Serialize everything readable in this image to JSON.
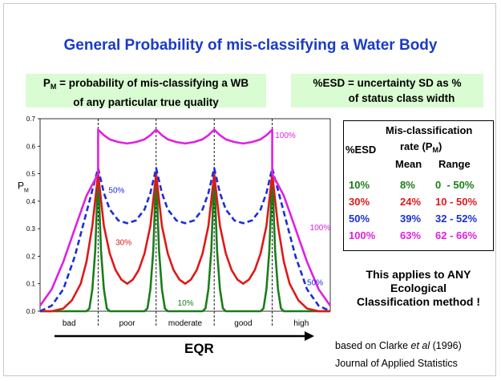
{
  "title": "General Probability of mis-classifying a Water Body",
  "note_left": {
    "line1_prefix": "P",
    "line1_sub": "M",
    "line1_rest": " = probability of mis-classifying a WB",
    "line2": "of any particular true quality"
  },
  "note_right": {
    "line1": "%ESD = uncertainty SD as %",
    "line2": "of status class width"
  },
  "table": {
    "header_line1": "Mis-classification",
    "header_line2_prefix": "rate (P",
    "header_line2_sub": "M",
    "header_line2_suffix": ")",
    "col_esd": "%ESD",
    "col_mean": "Mean",
    "col_range": "Range",
    "rows": [
      {
        "esd": "10%",
        "mean": "8%",
        "range": "0  - 50%",
        "color": "#1b7d1b"
      },
      {
        "esd": "30%",
        "mean": "24%",
        "range": "10 - 50%",
        "color": "#e01818"
      },
      {
        "esd": "50%",
        "mean": "39%",
        "range": "32 - 52%",
        "color": "#1a2fd6"
      },
      {
        "esd": "100%",
        "mean": "63%",
        "range": "62 - 66%",
        "color": "#e020e0"
      }
    ]
  },
  "applies_text": [
    "This applies to ANY",
    "Ecological",
    "Classification method !"
  ],
  "source": {
    "line1_prefix": "based on Clarke ",
    "line1_italic": "et al",
    "line1_suffix": " (1996)",
    "line2": "Journal of Applied Statistics"
  },
  "eqr_label": "EQR",
  "chart_data": {
    "type": "line",
    "ylabel": "P",
    "ylabel_sub": "M",
    "ylim": [
      0,
      0.7
    ],
    "yticks": [
      "0.0",
      "0.1",
      "0.2",
      "0.3",
      "0.4",
      "0.5",
      "0.6",
      "0.7"
    ],
    "xlim": [
      0,
      5
    ],
    "class_boundaries": [
      1,
      2,
      3,
      4
    ],
    "class_labels": [
      "bad",
      "poor",
      "moderate",
      "good",
      "high"
    ],
    "grid": false,
    "series": [
      {
        "name": "10%",
        "color": "#1b7d1b",
        "dash": false,
        "x": [
          0,
          0.8,
          0.85,
          0.9,
          0.95,
          1.0,
          1.05,
          1.1,
          1.15,
          1.2,
          1.5,
          1.8,
          1.85,
          1.9,
          1.95,
          2.0,
          2.05,
          2.1,
          2.15,
          2.2,
          2.5,
          2.8,
          2.85,
          2.9,
          2.95,
          3.0,
          3.05,
          3.1,
          3.15,
          3.2,
          3.5,
          3.8,
          3.85,
          3.9,
          3.95,
          4.0,
          4.05,
          4.1,
          4.15,
          4.2,
          5
        ],
        "y": [
          0,
          0.0,
          0.01,
          0.08,
          0.22,
          0.5,
          0.22,
          0.08,
          0.01,
          0.0,
          0.0,
          0.0,
          0.01,
          0.08,
          0.22,
          0.5,
          0.22,
          0.08,
          0.01,
          0.0,
          0.0,
          0.0,
          0.01,
          0.08,
          0.22,
          0.5,
          0.22,
          0.08,
          0.01,
          0.0,
          0.0,
          0.0,
          0.01,
          0.08,
          0.22,
          0.5,
          0.22,
          0.08,
          0.01,
          0.0,
          0
        ]
      },
      {
        "name": "30%",
        "color": "#e01818",
        "dash": false,
        "x": [
          0,
          0.2,
          0.4,
          0.55,
          0.7,
          0.8,
          0.9,
          1.0,
          1.1,
          1.2,
          1.3,
          1.4,
          1.5,
          1.6,
          1.7,
          1.8,
          1.9,
          2.0,
          2.1,
          2.2,
          2.3,
          2.4,
          2.5,
          2.6,
          2.7,
          2.8,
          2.9,
          3.0,
          3.1,
          3.2,
          3.3,
          3.4,
          3.5,
          3.6,
          3.7,
          3.8,
          3.9,
          4.0,
          4.1,
          4.2,
          4.3,
          4.45,
          4.6,
          4.8,
          5.0
        ],
        "y": [
          0.0,
          0.0,
          0.01,
          0.04,
          0.1,
          0.18,
          0.31,
          0.5,
          0.31,
          0.21,
          0.15,
          0.115,
          0.1,
          0.115,
          0.15,
          0.21,
          0.31,
          0.5,
          0.31,
          0.21,
          0.15,
          0.115,
          0.1,
          0.115,
          0.15,
          0.21,
          0.31,
          0.5,
          0.31,
          0.21,
          0.15,
          0.115,
          0.1,
          0.115,
          0.15,
          0.21,
          0.31,
          0.5,
          0.31,
          0.18,
          0.1,
          0.04,
          0.01,
          0.0,
          0.0
        ]
      },
      {
        "name": "50%",
        "color": "#1a2fd6",
        "dash": true,
        "x": [
          0,
          0.2,
          0.4,
          0.6,
          0.8,
          0.9,
          1.0,
          1.1,
          1.2,
          1.35,
          1.5,
          1.65,
          1.8,
          1.9,
          2.0,
          2.1,
          2.2,
          2.35,
          2.5,
          2.65,
          2.8,
          2.9,
          3.0,
          3.1,
          3.2,
          3.35,
          3.5,
          3.65,
          3.8,
          3.9,
          4.0,
          4.1,
          4.2,
          4.4,
          4.6,
          4.8,
          5.0
        ],
        "y": [
          0.0,
          0.02,
          0.08,
          0.2,
          0.36,
          0.44,
          0.52,
          0.43,
          0.37,
          0.33,
          0.32,
          0.33,
          0.37,
          0.43,
          0.52,
          0.43,
          0.37,
          0.33,
          0.32,
          0.33,
          0.37,
          0.43,
          0.52,
          0.43,
          0.37,
          0.33,
          0.32,
          0.33,
          0.37,
          0.43,
          0.52,
          0.44,
          0.36,
          0.2,
          0.08,
          0.02,
          0.0
        ]
      },
      {
        "name": "100%",
        "color": "#e020e0",
        "dash": false,
        "x": [
          0,
          0.2,
          0.4,
          0.6,
          0.8,
          1.0,
          1.0,
          1.1,
          1.2,
          1.35,
          1.5,
          1.65,
          1.8,
          1.9,
          2.0,
          2.1,
          2.2,
          2.35,
          2.5,
          2.65,
          2.8,
          2.9,
          3.0,
          3.1,
          3.2,
          3.35,
          3.5,
          3.65,
          3.8,
          3.9,
          4.0,
          4.0,
          4.2,
          4.4,
          4.6,
          4.8,
          5.0
        ],
        "y": [
          0.02,
          0.08,
          0.18,
          0.3,
          0.42,
          0.5,
          0.66,
          0.64,
          0.625,
          0.615,
          0.61,
          0.615,
          0.625,
          0.64,
          0.66,
          0.64,
          0.625,
          0.615,
          0.61,
          0.615,
          0.625,
          0.64,
          0.66,
          0.64,
          0.625,
          0.615,
          0.61,
          0.615,
          0.625,
          0.64,
          0.66,
          0.5,
          0.42,
          0.3,
          0.18,
          0.08,
          0.02
        ]
      }
    ],
    "annotations": [
      {
        "text": "100%",
        "x": 4.05,
        "y": 0.63,
        "color": "#e020e0"
      },
      {
        "text": "50%",
        "x": 1.18,
        "y": 0.43,
        "color": "#1a2fd6"
      },
      {
        "text": "100%",
        "x": 4.65,
        "y": 0.295,
        "color": "#e020e0"
      },
      {
        "text": "30%",
        "x": 1.3,
        "y": 0.24,
        "color": "#e01818"
      },
      {
        "text": "50%",
        "x": 4.6,
        "y": 0.095,
        "color": "#1a2fd6"
      },
      {
        "text": "10%",
        "x": 2.37,
        "y": 0.02,
        "color": "#1b7d1b"
      }
    ]
  }
}
